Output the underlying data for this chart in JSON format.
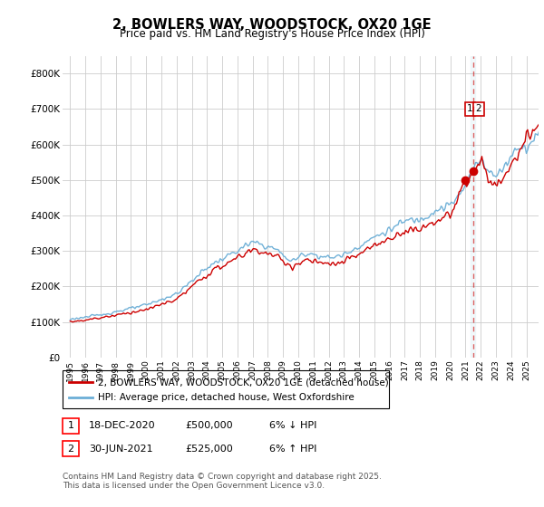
{
  "title_line1": "2, BOWLERS WAY, WOODSTOCK, OX20 1GE",
  "title_line2": "Price paid vs. HM Land Registry's House Price Index (HPI)",
  "ylim": [
    0,
    850000
  ],
  "yticks": [
    0,
    100000,
    200000,
    300000,
    400000,
    500000,
    600000,
    700000,
    800000
  ],
  "ytick_labels": [
    "£0",
    "£100K",
    "£200K",
    "£300K",
    "£400K",
    "£500K",
    "£600K",
    "£700K",
    "£800K"
  ],
  "hpi_color": "#6baed6",
  "price_color": "#cc0000",
  "dot_color": "#cc0000",
  "vline_color": "#cc0000",
  "background_color": "#ffffff",
  "grid_color": "#cccccc",
  "legend_label_red": "2, BOWLERS WAY, WOODSTOCK, OX20 1GE (detached house)",
  "legend_label_blue": "HPI: Average price, detached house, West Oxfordshire",
  "transaction1_date": "18-DEC-2020",
  "transaction1_price": "£500,000",
  "transaction1_hpi": "6% ↓ HPI",
  "transaction2_date": "30-JUN-2021",
  "transaction2_price": "£525,000",
  "transaction2_hpi": "6% ↑ HPI",
  "footnote": "Contains HM Land Registry data © Crown copyright and database right 2025.\nThis data is licensed under the Open Government Licence v3.0.",
  "marker1_x": 2020.96,
  "marker1_y": 500000,
  "marker2_x": 2021.5,
  "marker2_y": 525000,
  "vline_x": 2021.5,
  "xlim_left": 1994.5,
  "xlim_right": 2025.8
}
